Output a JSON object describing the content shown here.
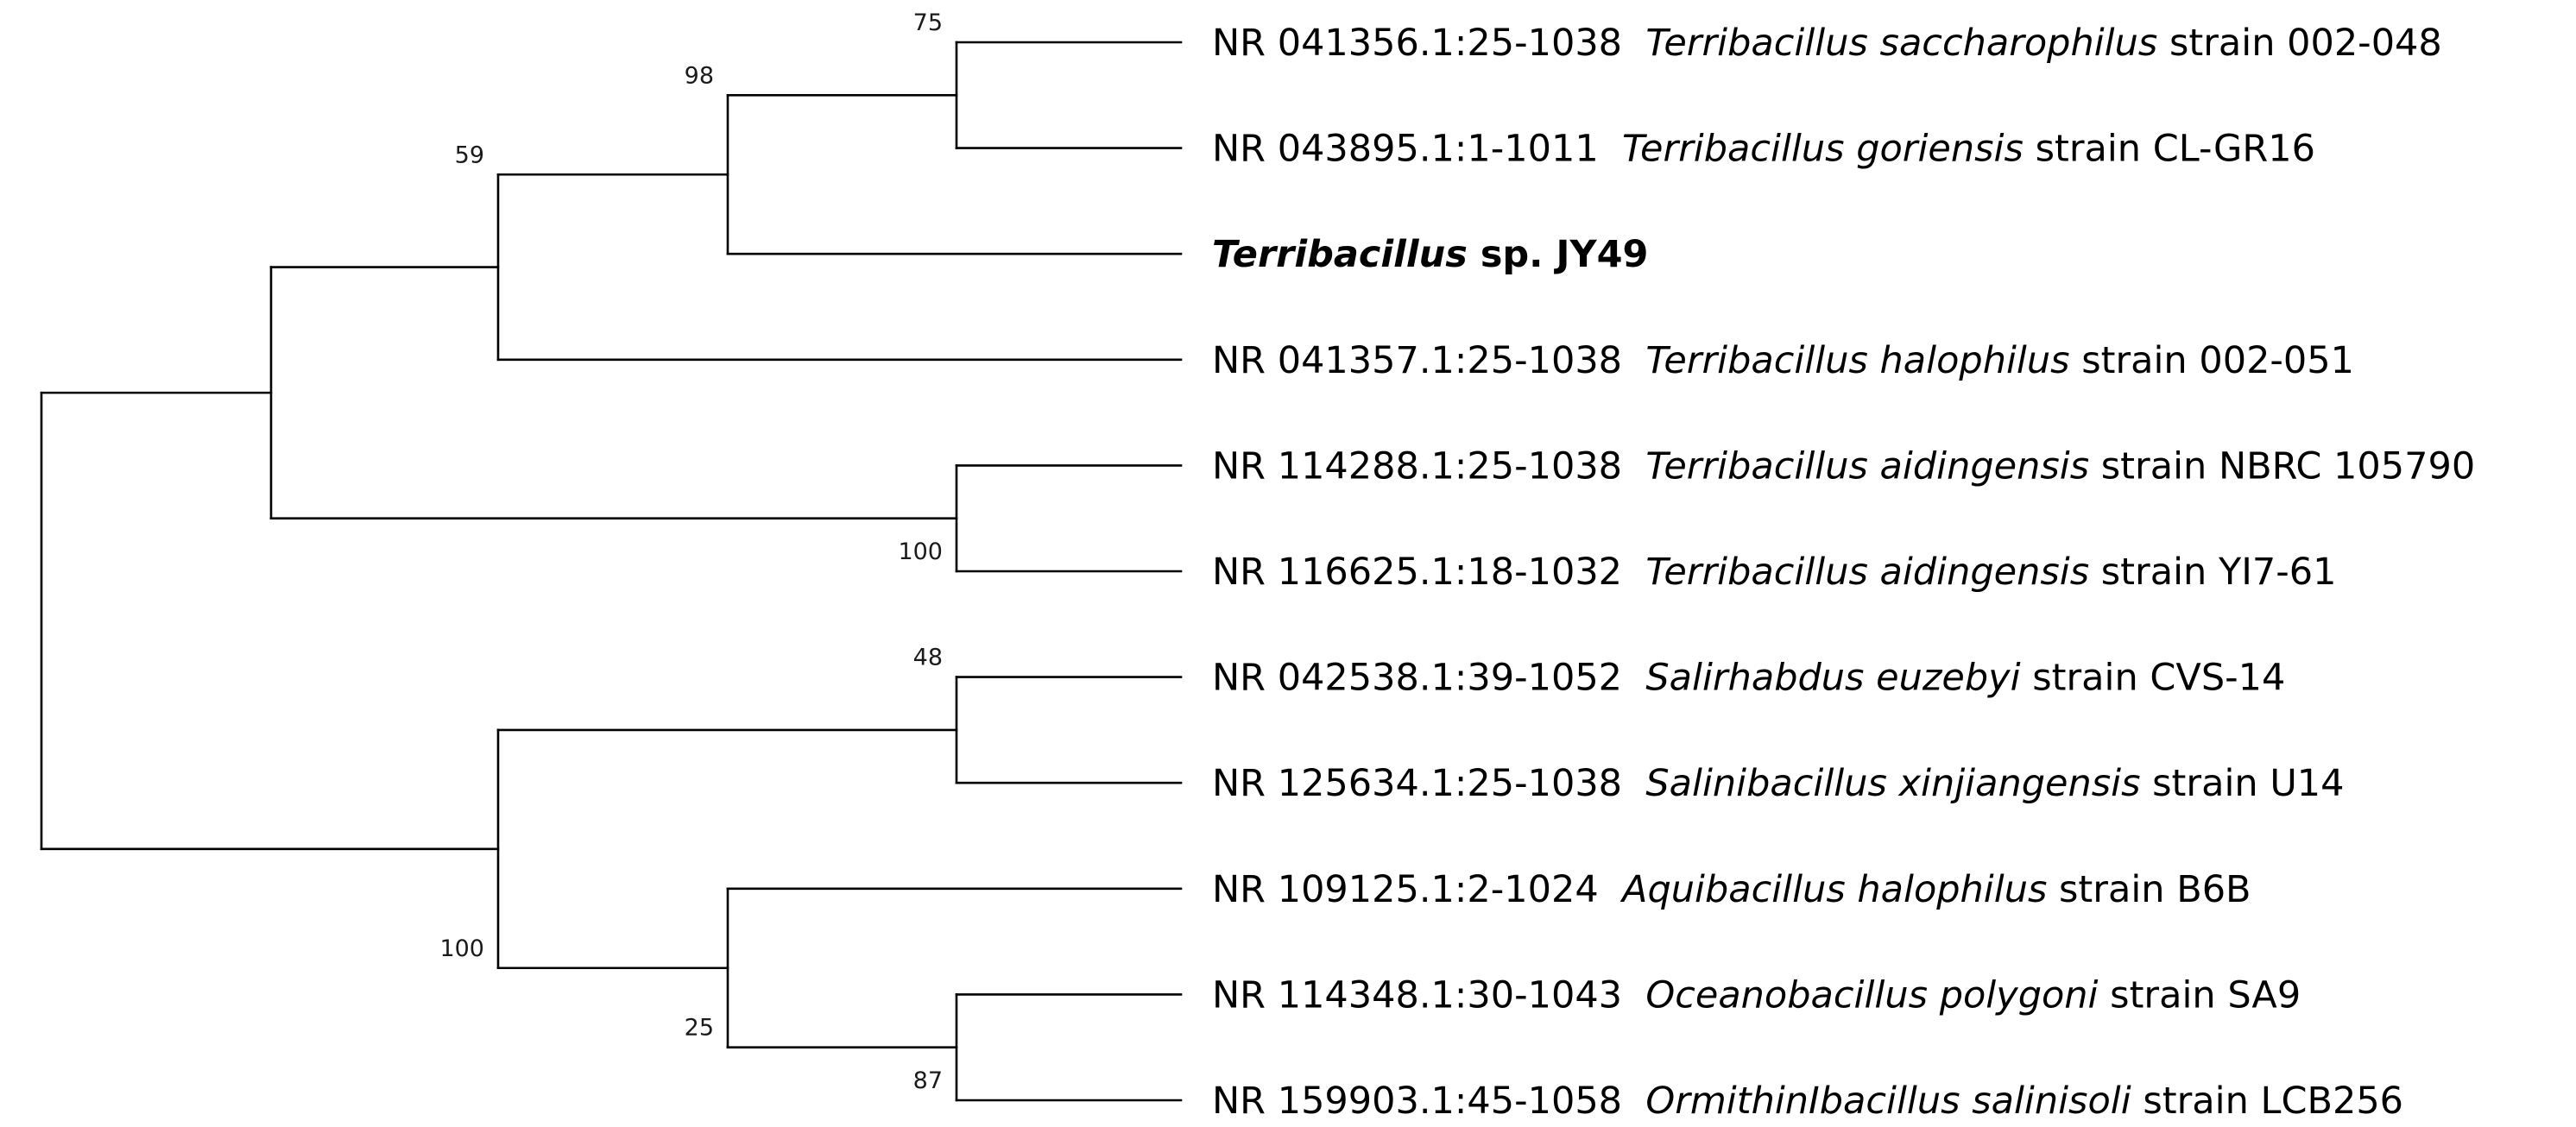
{
  "tree": {
    "taxa": [
      {
        "id": "t1",
        "accession": "NR 041356.1:25-1038",
        "genus_species": "Terribacillus saccharophilus",
        "strain": "strain 002-048",
        "query": false
      },
      {
        "id": "t2",
        "accession": "NR 043895.1:1-1011",
        "genus_species": "Terribacillus goriensis",
        "strain": "strain CL-GR16",
        "query": false
      },
      {
        "id": "t3",
        "accession": "",
        "genus_species": "Terribacillus",
        "strain": "sp. JY49",
        "query": true
      },
      {
        "id": "t4",
        "accession": "NR 041357.1:25-1038",
        "genus_species": "Terribacillus halophilus",
        "strain": "strain 002-051",
        "query": false
      },
      {
        "id": "t5",
        "accession": "NR 114288.1:25-1038",
        "genus_species": "Terribacillus aidingensis",
        "strain": "strain NBRC 105790",
        "query": false
      },
      {
        "id": "t6",
        "accession": "NR 116625.1:18-1032",
        "genus_species": "Terribacillus aidingensis",
        "strain": "strain YI7-61",
        "query": false
      },
      {
        "id": "t7",
        "accession": "NR 042538.1:39-1052",
        "genus_species": "Salirhabdus euzebyi",
        "strain": "strain CVS-14",
        "query": false
      },
      {
        "id": "t8",
        "accession": "NR 125634.1:25-1038",
        "genus_species": "Salinibacillus xinjiangensis",
        "strain": "strain U14",
        "query": false
      },
      {
        "id": "t9",
        "accession": "NR 109125.1:2-1024",
        "genus_species": "Aquibacillus halophilus",
        "strain": "strain B6B",
        "query": false
      },
      {
        "id": "t10",
        "accession": "NR 114348.1:30-1043",
        "genus_species": "Oceanobacillus polygoni",
        "strain": "strain SA9",
        "query": false
      },
      {
        "id": "t11",
        "accession": "NR 159903.1:45-1058",
        "genus_species": "OrmithinIbacillus salinisoli",
        "strain": "strain LCB256",
        "query": false
      }
    ],
    "clades": [
      {
        "id": "n_t1_t2",
        "children": [
          "t1",
          "t2"
        ],
        "bootstrap": "75"
      },
      {
        "id": "n_t1_t3",
        "children": [
          "n_t1_t2",
          "t3"
        ],
        "bootstrap": "98"
      },
      {
        "id": "n_t1_t4",
        "children": [
          "n_t1_t3",
          "t4"
        ],
        "bootstrap": "59"
      },
      {
        "id": "n_t5_t6",
        "children": [
          "t5",
          "t6"
        ],
        "bootstrap": "100"
      },
      {
        "id": "n_terri",
        "children": [
          "n_t1_t4",
          "n_t5_t6"
        ],
        "bootstrap": ""
      },
      {
        "id": "n_t7_t8",
        "children": [
          "t7",
          "t8"
        ],
        "bootstrap": "48"
      },
      {
        "id": "n_t10_t11",
        "children": [
          "t10",
          "t11"
        ],
        "bootstrap": "87"
      },
      {
        "id": "n_t9_t11",
        "children": [
          "t9",
          "n_t10_t11"
        ],
        "bootstrap": "25"
      },
      {
        "id": "n_other",
        "children": [
          "n_t7_t8",
          "n_t9_t11"
        ],
        "bootstrap": "100"
      },
      {
        "id": "root",
        "children": [
          "n_terri",
          "n_other"
        ],
        "bootstrap": ""
      }
    ]
  }
}
